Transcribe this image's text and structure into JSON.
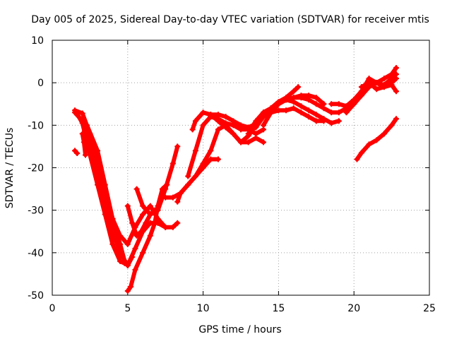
{
  "chart_data": {
    "type": "scatter",
    "title": "Day 005 of 2025, Sidereal Day-to-day VTEC variation (SDTVAR) for receiver mtis",
    "xlabel": "GPS time / hours",
    "ylabel": "SDTVAR / TECUs",
    "xlim": [
      0,
      25
    ],
    "ylim": [
      -50,
      10
    ],
    "xticks": [
      0,
      5,
      10,
      15,
      20,
      25
    ],
    "yticks": [
      -50,
      -40,
      -30,
      -20,
      -10,
      0,
      10
    ],
    "xtick_labels": [
      "0",
      "5",
      "10",
      "15",
      "20",
      "25"
    ],
    "ytick_labels": [
      "-50",
      "-40",
      "-30",
      "-20",
      "-10",
      "0",
      "10"
    ],
    "grid": true,
    "marker_color": "#ff0000",
    "series": [
      {
        "x": [
          1.5,
          1.65
        ],
        "y": [
          -16,
          -16.6
        ]
      },
      {
        "x": [
          1.5,
          2.0,
          2.5,
          3.0,
          3.5,
          4.0,
          4.5,
          5.0,
          5.5,
          6.0,
          6.5,
          7.0,
          7.5
        ],
        "y": [
          -6.5,
          -7.2,
          -12,
          -19,
          -26,
          -32,
          -36,
          -38,
          -34,
          -31,
          -29,
          -32,
          -34
        ]
      },
      {
        "x": [
          1.5,
          2.0,
          2.5,
          3.0,
          3.5,
          4.0,
          4.5,
          5.0,
          5.5,
          6.0,
          6.5,
          7.0,
          7.5,
          8.0,
          8.3
        ],
        "y": [
          -7,
          -9,
          -14,
          -21,
          -28,
          -35,
          -40,
          -43,
          -39,
          -35,
          -33,
          -33,
          -34,
          -34,
          -33
        ]
      },
      {
        "x": [
          1.6,
          2.0,
          2.5,
          3.0,
          3.5,
          4.0,
          4.5,
          4.8,
          5.0
        ],
        "y": [
          -7,
          -9.5,
          -17,
          -24,
          -31,
          -38,
          -42,
          -42.5,
          -42.5
        ]
      },
      {
        "x": [
          2.0,
          2.1,
          2.2
        ],
        "y": [
          -12,
          -14,
          -17
        ]
      },
      {
        "x": [
          2.3,
          3.0,
          3.5,
          4.0,
          4.5,
          4.8,
          5.0,
          5.3
        ],
        "y": [
          -10,
          -16,
          -24,
          -32,
          -38,
          -42,
          -43,
          -41
        ]
      },
      {
        "x": [
          5.0,
          5.2,
          5.5,
          6.0,
          6.5,
          6.8,
          7.0,
          7.3,
          7.6
        ],
        "y": [
          -49,
          -48,
          -44,
          -40,
          -36,
          -33,
          -29,
          -25,
          -24
        ]
      },
      {
        "x": [
          5.0,
          5.3,
          5.6,
          5.9,
          6.2,
          6.5,
          6.8,
          7.0
        ],
        "y": [
          -29,
          -33,
          -36,
          -35,
          -33,
          -31,
          -30,
          -30
        ]
      },
      {
        "x": [
          5.6,
          6.0,
          6.5,
          7.0,
          7.5,
          8.0,
          8.3
        ],
        "y": [
          -25,
          -29,
          -31,
          -30,
          -25,
          -19,
          -15
        ]
      },
      {
        "x": [
          7.5,
          8.0,
          8.5,
          9.0,
          9.5,
          10.0,
          10.5,
          11.0
        ],
        "y": [
          -27,
          -27,
          -26,
          -24,
          -22,
          -20,
          -18,
          -18
        ]
      },
      {
        "x": [
          8.3,
          8.5,
          9.0,
          9.5,
          10.0,
          10.5,
          11.0,
          11.5,
          12.0,
          12.5,
          13.0,
          13.5,
          14.0
        ],
        "y": [
          -28,
          -26,
          -24,
          -22,
          -19,
          -16,
          -11,
          -10,
          -12,
          -14,
          -14,
          -13,
          -14
        ]
      },
      {
        "x": [
          9.0,
          9.5,
          10.0,
          10.5,
          11.0,
          11.5,
          12.0,
          12.5,
          13.0,
          13.5,
          14.0
        ],
        "y": [
          -22,
          -16,
          -10,
          -8,
          -8.5,
          -9.5,
          -10,
          -11,
          -11,
          -12,
          -11
        ]
      },
      {
        "x": [
          9.3,
          9.5,
          10.0,
          10.5,
          11.0,
          11.5,
          12.0,
          12.5
        ],
        "y": [
          -11,
          -9,
          -7,
          -7.5,
          -9,
          -10.5,
          -12,
          -14
        ]
      },
      {
        "x": [
          10.5,
          11.0,
          11.5,
          12.0,
          12.5,
          13.0,
          13.3
        ],
        "y": [
          -7.5,
          -7.5,
          -8,
          -9,
          -10,
          -10.5,
          -10
        ]
      },
      {
        "x": [
          12.5,
          13.0,
          13.5,
          14.0,
          14.5,
          15.0,
          15.5,
          16.0,
          16.5,
          17.0,
          17.5,
          18.0
        ],
        "y": [
          -14,
          -12.5,
          -10,
          -8,
          -7,
          -6.5,
          -6.5,
          -6,
          -7,
          -8,
          -9,
          -9
        ]
      },
      {
        "x": [
          13.0,
          13.5,
          14.0,
          14.5,
          15.0,
          15.5,
          16.0,
          16.5,
          17.0,
          17.5,
          18.0,
          18.5,
          19.0
        ],
        "y": [
          -12,
          -9,
          -7,
          -6,
          -5,
          -4,
          -4.5,
          -5.5,
          -6.5,
          -7.5,
          -8.5,
          -9.5,
          -9
        ]
      },
      {
        "x": [
          14.0,
          14.5,
          15.0,
          15.5,
          16.0,
          16.5,
          17.0,
          17.5,
          18.0,
          18.5,
          19.0,
          19.5,
          20.0
        ],
        "y": [
          -10,
          -7,
          -5,
          -4,
          -3.5,
          -3.5,
          -4,
          -5,
          -6,
          -7,
          -7,
          -6,
          -4
        ]
      },
      {
        "x": [
          14.0,
          14.5,
          15.0,
          15.5,
          16.0,
          16.3
        ],
        "y": [
          -7,
          -6,
          -4.5,
          -3.5,
          -2,
          -1
        ]
      },
      {
        "x": [
          13.5,
          14.0,
          14.5,
          15.0,
          15.5,
          16.0,
          16.5,
          17.0,
          17.5,
          18.0
        ],
        "y": [
          -10.5,
          -8,
          -6,
          -5,
          -4,
          -3.5,
          -3,
          -3,
          -3.5,
          -5
        ]
      },
      {
        "x": [
          18.5,
          19.0,
          19.5,
          20.0,
          20.5,
          21.0,
          21.5,
          22.0,
          22.5,
          22.8
        ],
        "y": [
          -5,
          -5,
          -5.5,
          -4,
          -2,
          -0.5,
          0,
          -0.5,
          1,
          2
        ]
      },
      {
        "x": [
          19.5,
          20.0,
          20.5,
          21.0,
          21.5,
          22.0,
          22.5,
          22.8
        ],
        "y": [
          -7,
          -5,
          -2,
          1,
          0,
          -1,
          0,
          1
        ]
      },
      {
        "x": [
          20.0,
          20.5,
          21.0,
          21.5,
          22.0,
          22.5,
          22.8
        ],
        "y": [
          -5,
          -3,
          -1,
          0,
          1,
          2,
          3.5
        ]
      },
      {
        "x": [
          20.5,
          21.0,
          21.5,
          22.0,
          22.5,
          22.8
        ],
        "y": [
          -1,
          0,
          -1.5,
          -1,
          -0.5,
          -2
        ]
      },
      {
        "x": [
          20.2,
          20.5,
          21.0,
          21.5,
          22.0,
          22.5,
          22.8
        ],
        "y": [
          -18,
          -16.5,
          -14.5,
          -13.5,
          -12,
          -10,
          -8.5
        ]
      }
    ]
  }
}
